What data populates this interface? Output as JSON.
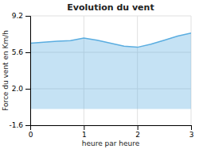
{
  "chart_data": {
    "type": "area",
    "title": "Evolution du vent",
    "x_label": "heure par heure",
    "y_label": "Force du vent en Km/h",
    "x": [
      0,
      0.25,
      0.5,
      0.75,
      1.0,
      1.25,
      1.5,
      1.75,
      2.0,
      2.25,
      2.5,
      2.75,
      3.0
    ],
    "values": [
      6.5,
      6.6,
      6.7,
      6.75,
      7.0,
      6.8,
      6.5,
      6.2,
      6.1,
      6.4,
      6.8,
      7.2,
      7.5
    ],
    "color": "#5aade0",
    "xlim": [
      0,
      3
    ],
    "xticks": [
      0,
      1,
      2,
      3
    ],
    "ylim": [
      -1.6,
      9.2
    ],
    "yticks": [
      -1.6,
      {
        "value": 2.0,
        "label": "2.0"
      },
      5.6,
      9.2
    ],
    "grid": true
  }
}
